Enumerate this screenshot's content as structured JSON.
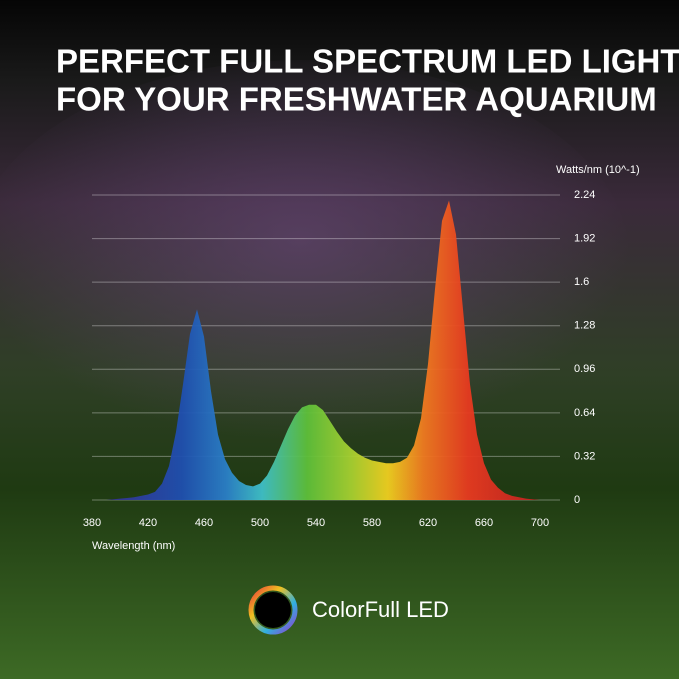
{
  "chart_data": {
    "type": "area",
    "title": [
      "PERFECT FULL SPECTRUM LED LIGHT",
      "FOR YOUR FRESHWATER AQUARIUM"
    ],
    "x_label": "Wavelength (nm)",
    "y_label": "Watts/nm (10^-1)",
    "brand": "ColorFull LED",
    "x": [
      380,
      385,
      390,
      395,
      400,
      405,
      410,
      415,
      420,
      425,
      430,
      435,
      440,
      445,
      450,
      455,
      460,
      465,
      470,
      475,
      480,
      485,
      490,
      495,
      500,
      505,
      510,
      515,
      520,
      525,
      530,
      535,
      540,
      545,
      550,
      555,
      560,
      565,
      570,
      575,
      580,
      585,
      590,
      595,
      600,
      605,
      610,
      615,
      620,
      625,
      630,
      635,
      640,
      645,
      650,
      655,
      660,
      665,
      670,
      675,
      680,
      685,
      690,
      695,
      700
    ],
    "values": [
      0,
      0,
      0,
      0.005,
      0.01,
      0.015,
      0.02,
      0.03,
      0.04,
      0.06,
      0.12,
      0.25,
      0.5,
      0.85,
      1.22,
      1.4,
      1.2,
      0.8,
      0.48,
      0.3,
      0.2,
      0.14,
      0.11,
      0.1,
      0.12,
      0.18,
      0.28,
      0.4,
      0.52,
      0.62,
      0.68,
      0.7,
      0.7,
      0.66,
      0.58,
      0.5,
      0.43,
      0.38,
      0.34,
      0.31,
      0.29,
      0.28,
      0.27,
      0.27,
      0.28,
      0.31,
      0.4,
      0.6,
      1.0,
      1.55,
      2.05,
      2.2,
      1.95,
      1.4,
      0.85,
      0.48,
      0.27,
      0.15,
      0.09,
      0.05,
      0.03,
      0.02,
      0.01,
      0.005,
      0
    ],
    "xlim": [
      380,
      700
    ],
    "ylim": [
      0,
      2.24
    ],
    "xticks": [
      380,
      420,
      460,
      500,
      540,
      580,
      620,
      660,
      700
    ],
    "yticks": [
      0,
      0.32,
      0.64,
      0.96,
      1.28,
      1.6,
      1.92,
      2.24
    ],
    "grid": true
  }
}
